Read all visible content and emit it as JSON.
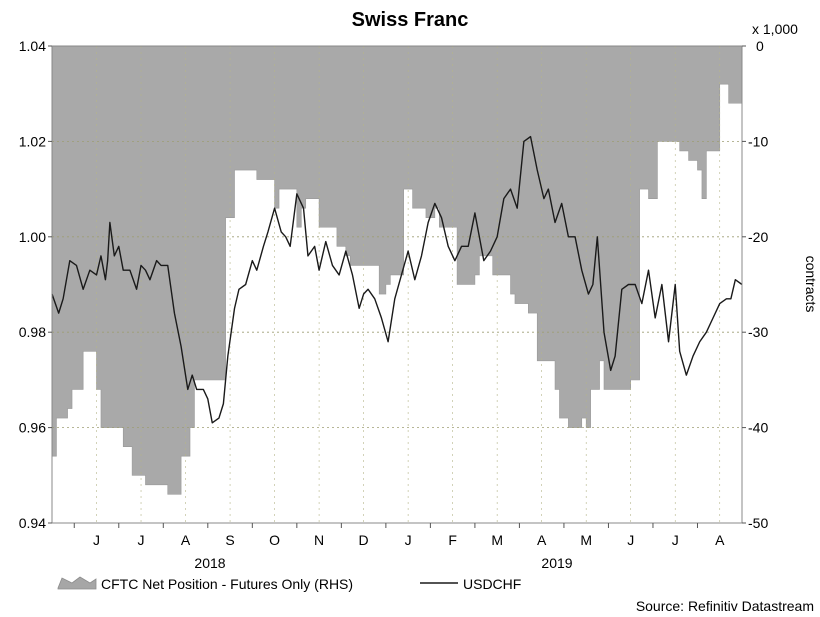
{
  "chart_data": {
    "type": "line",
    "title": "Swiss Franc",
    "source": "Source: Refinitiv Datastream",
    "left_axis": {
      "ylim": [
        0.94,
        1.04
      ],
      "ticks": [
        "1.04",
        "1.02",
        "1.00",
        "0.98",
        "0.96",
        "0.94"
      ],
      "tick_values": [
        1.04,
        1.02,
        1.0,
        0.98,
        0.96,
        0.94
      ]
    },
    "right_axis": {
      "unit_label": "x 1,000",
      "label": "contracts",
      "ylim": [
        -50,
        0
      ],
      "ticks": [
        "0",
        "-10",
        "-20",
        "-30",
        "-40",
        "-50"
      ],
      "tick_values": [
        0,
        -10,
        -20,
        -30,
        -40,
        -50
      ]
    },
    "x_axis": {
      "months": [
        "J",
        "J",
        "A",
        "S",
        "O",
        "N",
        "D",
        "J",
        "F",
        "M",
        "A",
        "M",
        "J",
        "J",
        "A"
      ],
      "years": [
        "2018",
        "2019"
      ],
      "xlim": [
        0,
        15.5
      ]
    },
    "legend": {
      "area_label": "CFTC Net Position - Futures Only (RHS)",
      "line_label": "USDCHF"
    },
    "series": [
      {
        "name": "CFTC Net Position - Futures Only (RHS)",
        "type": "area",
        "axis": "right",
        "x": [
          0,
          0.1,
          0.15,
          0.35,
          0.45,
          0.7,
          0.8,
          1.0,
          1.1,
          1.5,
          1.6,
          1.7,
          1.8,
          2.0,
          2.1,
          2.4,
          2.5,
          2.6,
          2.9,
          3.1,
          3.2,
          3.4,
          3.6,
          3.9,
          4.0,
          4.1,
          4.3,
          4.45,
          4.6,
          4.9,
          5.0,
          5.1,
          5.5,
          5.6,
          5.7,
          6.0,
          6.1,
          6.4,
          6.6,
          6.7,
          6.9,
          7.0,
          7.1,
          7.35,
          7.5,
          7.6,
          7.9,
          8.1,
          8.3,
          8.4,
          8.6,
          8.7,
          8.9,
          9.1,
          9.3,
          9.5,
          9.6,
          9.9,
          10.1,
          10.3,
          10.4,
          10.5,
          10.7,
          10.9,
          11.1,
          11.3,
          11.4,
          11.6,
          11.8,
          11.9,
          12.0,
          12.1,
          12.3,
          12.4,
          12.6,
          12.8,
          13.0,
          13.2,
          13.4,
          13.6,
          13.8,
          14.1,
          14.3,
          14.5,
          14.6,
          14.7,
          15.0,
          15.2,
          15.5
        ],
        "values": [
          -43,
          -39,
          -39,
          -38,
          -36,
          -32,
          -32,
          -36,
          -40,
          -40,
          -42,
          -42,
          -45,
          -45,
          -46,
          -46,
          -46,
          -47,
          -43,
          -40,
          -35,
          -35,
          -35,
          -18,
          -18,
          -13,
          -13,
          -13,
          -14,
          -14,
          -17,
          -15,
          -19,
          -17,
          -16,
          -19,
          -19,
          -21,
          -22,
          -23,
          -23,
          -23,
          -23,
          -26,
          -25,
          -24,
          -15,
          -17,
          -17,
          -18,
          -17,
          -19,
          -19,
          -25,
          -25,
          -24,
          -22,
          -24,
          -24,
          -26,
          -27,
          -27,
          -28,
          -33,
          -33,
          -36,
          -39,
          -40,
          -40,
          -39,
          -40,
          -36,
          -33,
          -36,
          -36,
          -36,
          -35,
          -15,
          -16,
          -10,
          -10,
          -11,
          -12,
          -13,
          -16,
          -11,
          -4,
          -6,
          -3
        ]
      },
      {
        "name": "USDCHF",
        "type": "line",
        "axis": "left",
        "x": [
          0,
          0.15,
          0.25,
          0.4,
          0.55,
          0.7,
          0.85,
          1.0,
          1.1,
          1.2,
          1.25,
          1.3,
          1.4,
          1.5,
          1.6,
          1.75,
          1.9,
          2.0,
          2.1,
          2.2,
          2.35,
          2.45,
          2.6,
          2.75,
          2.9,
          3.05,
          3.15,
          3.25,
          3.4,
          3.5,
          3.6,
          3.75,
          3.85,
          3.95,
          4.1,
          4.2,
          4.35,
          4.5,
          4.6,
          4.75,
          4.85,
          5.0,
          5.15,
          5.25,
          5.35,
          5.5,
          5.65,
          5.75,
          5.9,
          6.0,
          6.15,
          6.3,
          6.45,
          6.6,
          6.75,
          6.9,
          7.0,
          7.1,
          7.25,
          7.4,
          7.55,
          7.7,
          7.85,
          8.0,
          8.15,
          8.3,
          8.45,
          8.6,
          8.75,
          8.9,
          9.05,
          9.2,
          9.35,
          9.5,
          9.7,
          9.85,
          10.0,
          10.15,
          10.3,
          10.45,
          10.6,
          10.75,
          10.9,
          11.05,
          11.15,
          11.3,
          11.45,
          11.6,
          11.75,
          11.9,
          12.05,
          12.15,
          12.25,
          12.4,
          12.55,
          12.65,
          12.8,
          12.95,
          13.1,
          13.25,
          13.4,
          13.55,
          13.7,
          13.85,
          14.0,
          14.1,
          14.25,
          14.4,
          14.55,
          14.7,
          14.85,
          15.0,
          15.15,
          15.25,
          15.35,
          15.5
        ],
        "values": [
          0.988,
          0.984,
          0.987,
          0.995,
          0.994,
          0.989,
          0.993,
          0.992,
          0.996,
          0.991,
          0.995,
          1.003,
          0.996,
          0.998,
          0.993,
          0.993,
          0.989,
          0.994,
          0.993,
          0.991,
          0.995,
          0.994,
          0.994,
          0.984,
          0.977,
          0.968,
          0.971,
          0.968,
          0.968,
          0.966,
          0.961,
          0.962,
          0.965,
          0.975,
          0.985,
          0.989,
          0.99,
          0.995,
          0.993,
          0.998,
          1.001,
          1.006,
          1.001,
          1.0,
          0.998,
          1.009,
          1.006,
          0.996,
          0.998,
          0.993,
          0.999,
          0.994,
          0.992,
          0.997,
          0.992,
          0.985,
          0.988,
          0.989,
          0.987,
          0.983,
          0.978,
          0.987,
          0.992,
          0.997,
          0.991,
          0.996,
          1.003,
          1.007,
          1.004,
          0.998,
          0.995,
          0.998,
          0.998,
          1.005,
          0.995,
          0.997,
          1.0,
          1.008,
          1.01,
          1.006,
          1.02,
          1.021,
          1.014,
          1.008,
          1.01,
          1.003,
          1.007,
          1.0,
          1.0,
          0.993,
          0.988,
          0.99,
          1.0,
          0.98,
          0.972,
          0.975,
          0.989,
          0.99,
          0.99,
          0.986,
          0.993,
          0.983,
          0.99,
          0.978,
          0.99,
          0.976,
          0.971,
          0.975,
          0.978,
          0.98,
          0.983,
          0.986,
          0.987,
          0.987,
          0.991,
          0.99
        ]
      }
    ]
  }
}
